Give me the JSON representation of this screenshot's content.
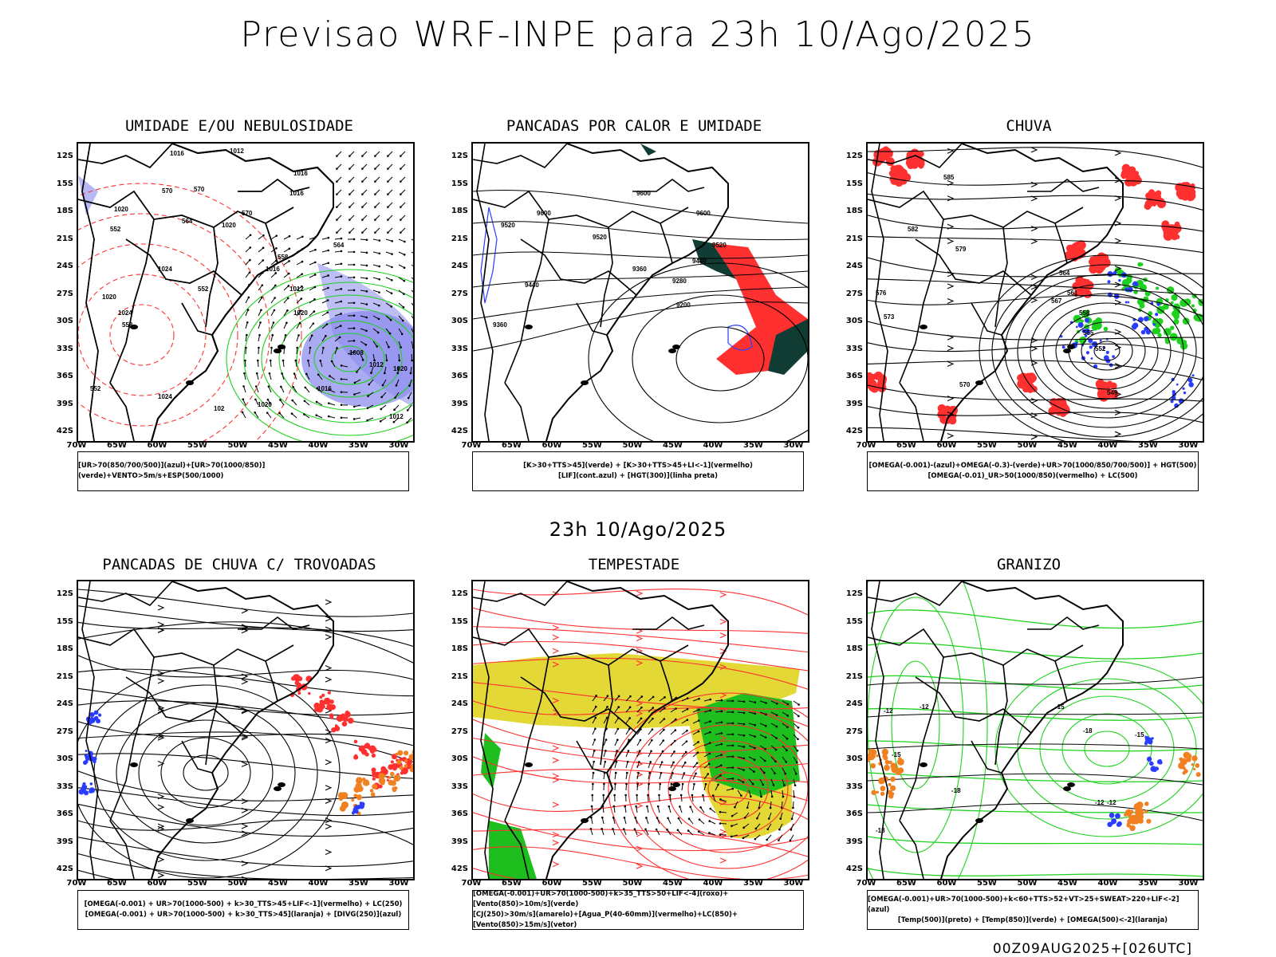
{
  "title": "Previsao WRF-INPE  para 23h 10/Ago/2025",
  "mid_time": "23h 10/Ago/2025",
  "footer_stamp": "00Z09AUG2025+[026UTC]",
  "lat_labels": [
    "12S",
    "15S",
    "18S",
    "21S",
    "24S",
    "27S",
    "30S",
    "33S",
    "36S",
    "39S",
    "42S"
  ],
  "lon_labels": [
    "70W",
    "65W",
    "60W",
    "55W",
    "50W",
    "45W",
    "40W",
    "35W",
    "30W"
  ],
  "panels": [
    {
      "title": "UMIDADE E/OU NEBULOSIDADE",
      "legend_lines": [
        "[UR>70(850/700/500)](azul)+[UR>70(1000/850)](verde)+VENTO>5m/s+ESP(500/1000)"
      ],
      "contour_labels": [
        "1016",
        "1012",
        "1016",
        "1016",
        "1020",
        "1020",
        "1024",
        "1020",
        "1016",
        "1012",
        "1012",
        "1008",
        "1024",
        "1020",
        "1016",
        "1012",
        "1020",
        "1024",
        "102",
        "1020",
        "570",
        "570",
        "564",
        "570",
        "552",
        "558",
        "564",
        "552",
        "558",
        "552"
      ]
    },
    {
      "title": "PANCADAS POR CALOR E UMIDADE",
      "legend_lines": [
        "[K>30+TTS>45](verde) + [K>30+TTS>45+LI<-1](vermelho)",
        "[LIF](cont.azul) + [HGT(300)](linha preta)"
      ],
      "contour_labels": [
        "9600",
        "9600",
        "9600",
        "9520",
        "9520",
        "9520",
        "9440",
        "9440",
        "9360",
        "9360",
        "9280",
        "9200"
      ]
    },
    {
      "title": "CHUVA",
      "legend_lines": [
        "[OMEGA(-0.001)-(azul)+OMEGA(-0.3)-(verde)+UR>70(1000/850/700/500)] + HGT(500)",
        "[OMEGA(-0.01)_UR>50(1000/850)(vermelho) + LC(500)"
      ],
      "contour_labels": [
        "585",
        "582",
        "579",
        "576",
        "573",
        "570",
        "567",
        "564",
        "561",
        "558",
        "555",
        "552",
        "549"
      ]
    },
    {
      "title": "PANCADAS DE CHUVA C/ TROVOADAS",
      "legend_lines": [
        "[OMEGA(-0.001) + UR>70(1000-500) + k>30_TTS>45+LIF<-1](vermelho) + LC(250)",
        "[OMEGA(-0.001) + UR>70(1000-500) + k>30_TTS>45](laranja) + [DIVG(250)](azul)"
      ],
      "contour_labels": []
    },
    {
      "title": "TEMPESTADE",
      "legend_lines": [
        "[OMEGA(-0.001)+UR>70(1000-500)+k>35_TTS>50+LIF<-4](roxo)+[Vento(850)>10m/s](verde)",
        "[CJ(250)>30m/s](amarelo)+[Agua_P(40-60mm)](vermelho)+LC(850)+[Vento(850)>15m/s](vetor)"
      ],
      "contour_labels": []
    },
    {
      "title": "GRANIZO",
      "legend_lines": [
        "[OMEGA(-0.001)+UR>70(1000-500)+k<60+TTS>52+VT>25+SWEAT>220+LIF<-2](azul)",
        "[Temp(500)](preto) + [Temp(850)](verde) + [OMEGA(500)<-2](laranja)"
      ],
      "contour_labels": [
        "-12",
        "-12",
        "-15",
        "-18",
        "-18",
        "-15",
        "-12",
        "-18",
        "-15",
        "-12"
      ]
    }
  ],
  "colors": {
    "blue": "#2a3cff",
    "green": "#1ed11e",
    "red": "#ff3030",
    "orange": "#f08020",
    "yellow": "#e3d836",
    "dark": "#113c33",
    "purple": "#8888ee"
  }
}
